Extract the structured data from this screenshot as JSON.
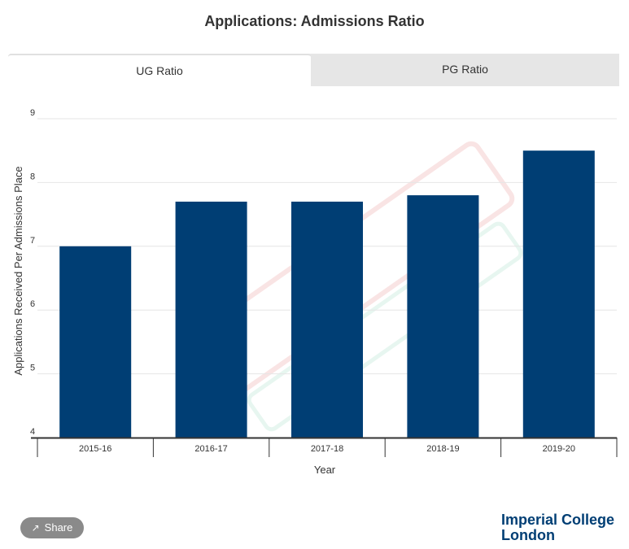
{
  "title": "Applications: Admissions Ratio",
  "tabs": [
    {
      "label": "UG Ratio",
      "active": true
    },
    {
      "label": "PG Ratio",
      "active": false
    }
  ],
  "share_label": "Share",
  "logo": {
    "line1": "Imperial College",
    "line2": "London"
  },
  "colors": {
    "bar": "#003e74",
    "grid": "#e6e6e6",
    "axis": "#333333"
  },
  "chart_data": {
    "type": "bar",
    "title": "Applications: Admissions Ratio",
    "categories": [
      "2015-16",
      "2016-17",
      "2017-18",
      "2018-19",
      "2019-20"
    ],
    "values": [
      7.0,
      7.7,
      7.7,
      7.8,
      8.5
    ],
    "xlabel": "Year",
    "ylabel": "Applications Received Per Admissions Place",
    "ylim": [
      4,
      9
    ],
    "yticks": [
      4,
      5,
      6,
      7,
      8,
      9
    ],
    "grid": true,
    "legend": "none"
  }
}
